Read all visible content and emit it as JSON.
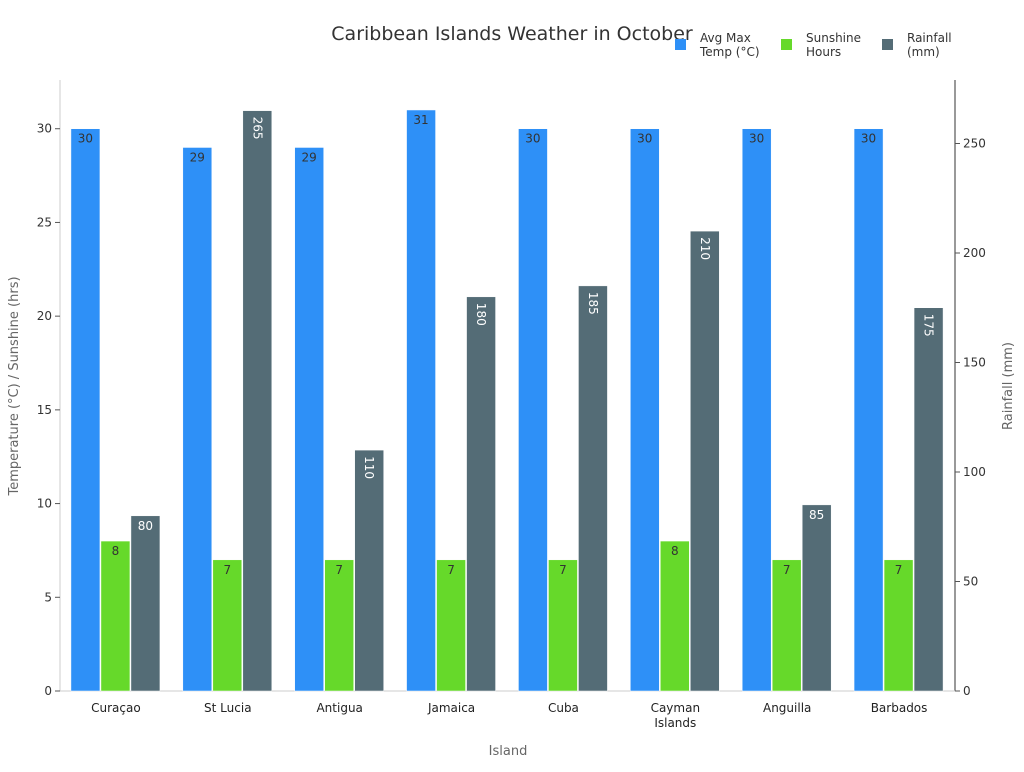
{
  "chart_data": {
    "type": "bar",
    "title": "Caribbean Islands Weather in October",
    "xlabel": "Island",
    "ylabel": "Temperature (°C) / Sunshine (hrs)",
    "y2label": "Rainfall (mm)",
    "categories": [
      "Curaçao",
      "St Lucia",
      "Antigua",
      "Jamaica",
      "Cuba",
      "Cayman\nIslands",
      "Anguilla",
      "Barbados"
    ],
    "ylim": [
      0,
      32.6
    ],
    "y2lim": [
      0,
      279
    ],
    "yticks": [
      0,
      5,
      10,
      15,
      20,
      25,
      30
    ],
    "y2ticks": [
      0,
      50,
      100,
      150,
      200,
      250
    ],
    "grid": false,
    "legend": "top-right",
    "series": [
      {
        "name": "Avg Max\nTemp (°C)",
        "axis": "left",
        "color": "#2e90f7",
        "values": [
          30,
          29,
          29,
          31,
          30,
          30,
          30,
          30
        ]
      },
      {
        "name": "Sunshine\nHours",
        "axis": "left",
        "color": "#66d92a",
        "values": [
          8,
          7,
          7,
          7,
          7,
          8,
          7,
          7
        ]
      },
      {
        "name": "Rainfall\n(mm)",
        "axis": "right",
        "color": "#546c76",
        "values": [
          80,
          265,
          110,
          180,
          185,
          210,
          85,
          175
        ]
      }
    ]
  }
}
